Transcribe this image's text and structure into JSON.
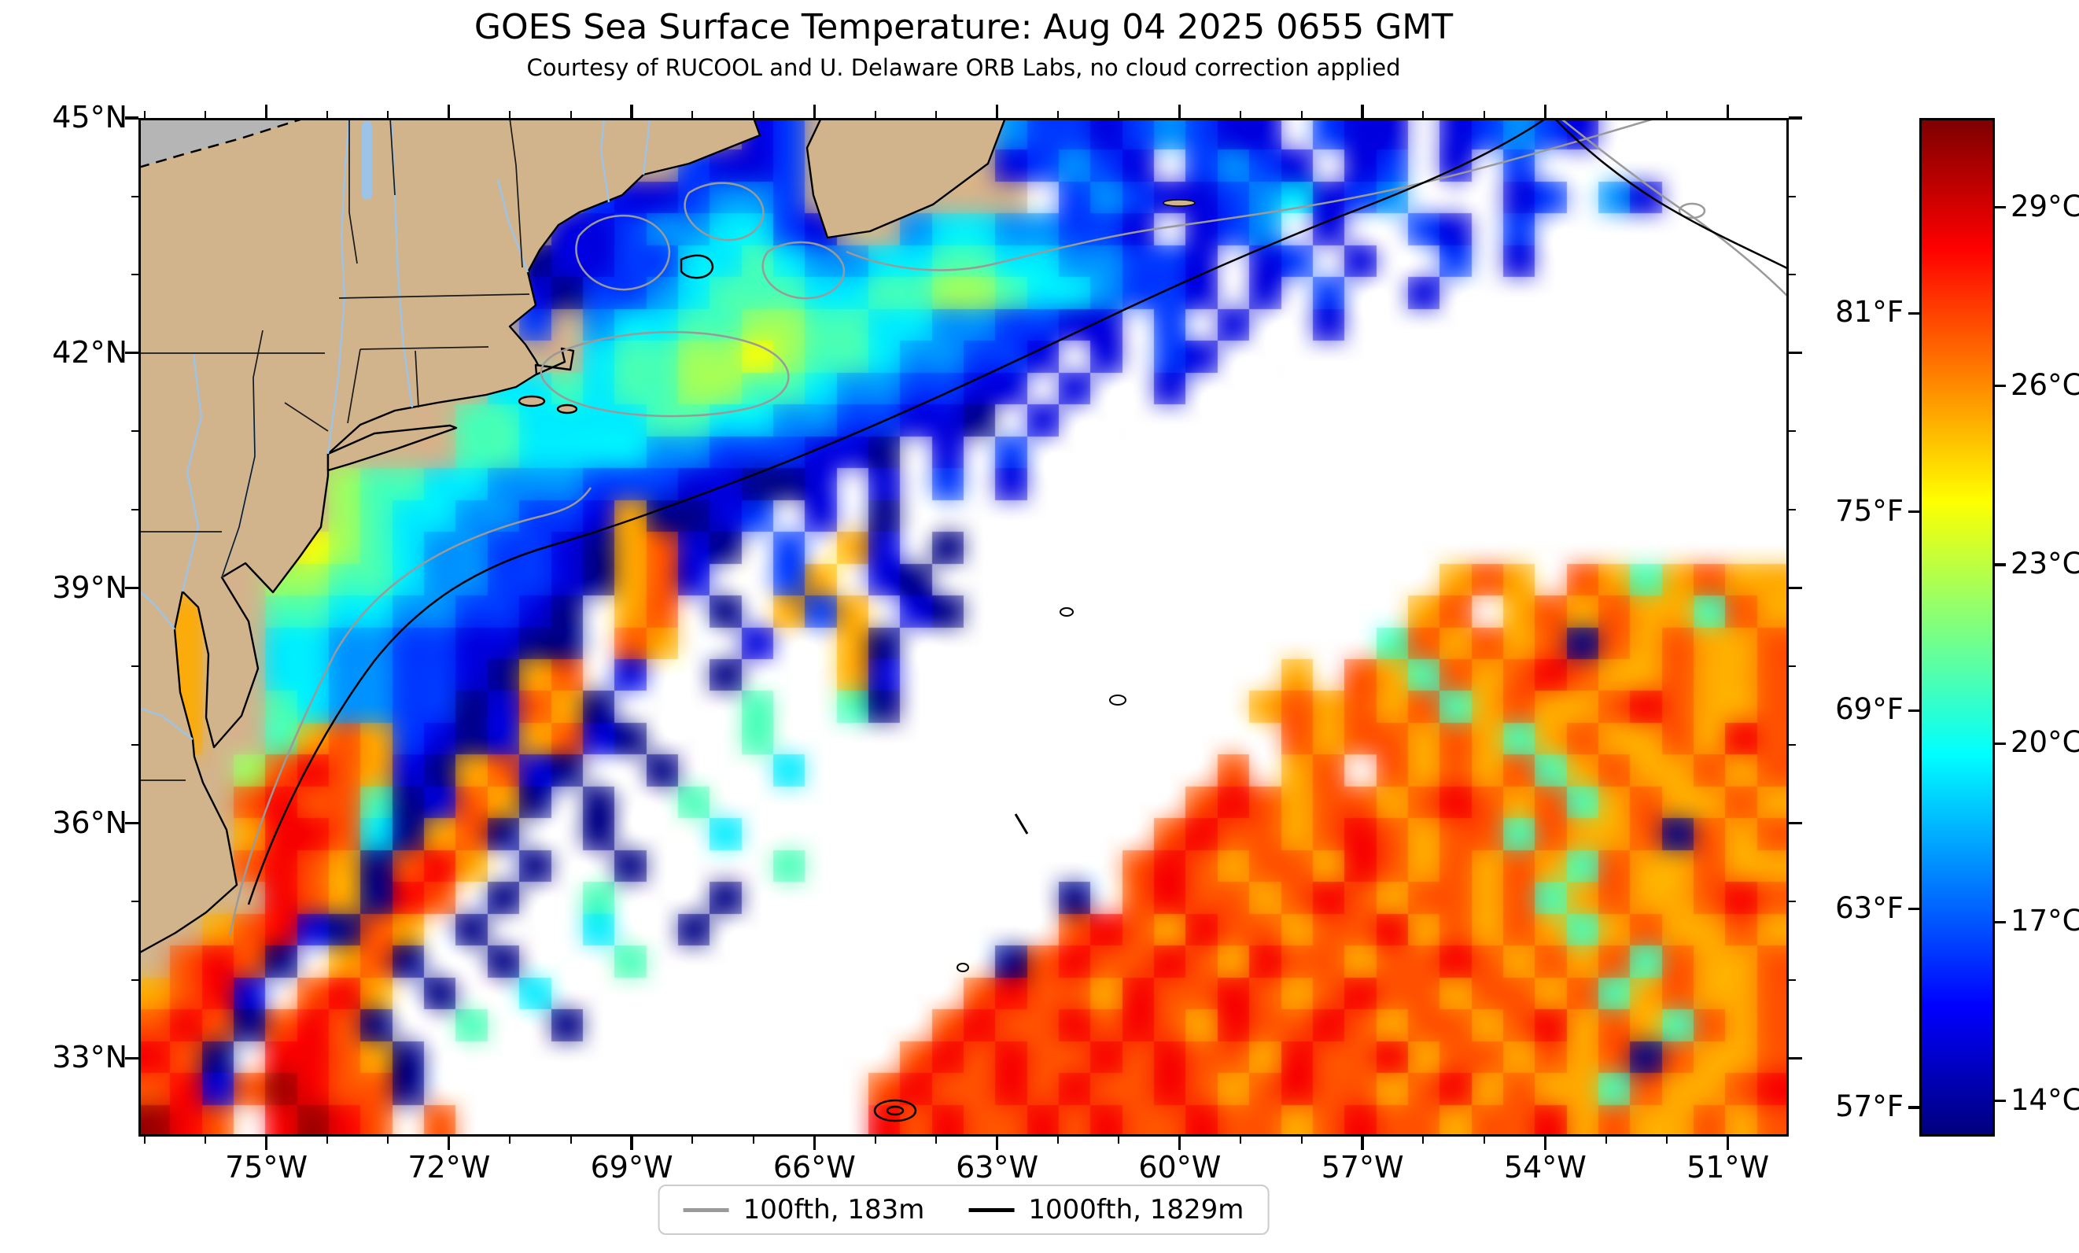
{
  "chart_data": {
    "type": "heatmap",
    "title": "GOES Sea Surface Temperature: Aug 04 2025 0655 GMT",
    "subtitle": "Courtesy of RUCOOL and U. Delaware ORB Labs, no cloud correction applied",
    "x_axis": {
      "min_deg_w": 77.1,
      "max_deg_w": 50.0,
      "minor_tick_step_deg": 1,
      "ticks": [
        {
          "deg_w": 75,
          "label": "75°W"
        },
        {
          "deg_w": 72,
          "label": "72°W"
        },
        {
          "deg_w": 69,
          "label": "69°W"
        },
        {
          "deg_w": 66,
          "label": "66°W"
        },
        {
          "deg_w": 63,
          "label": "63°W"
        },
        {
          "deg_w": 60,
          "label": "60°W"
        },
        {
          "deg_w": 57,
          "label": "57°W"
        },
        {
          "deg_w": 54,
          "label": "54°W"
        },
        {
          "deg_w": 51,
          "label": "51°W"
        }
      ]
    },
    "y_axis": {
      "max_deg_n": 45.0,
      "min_deg_n": 32.0,
      "minor_tick_step_deg": 1,
      "ticks": [
        {
          "deg_n": 45,
          "label": "45°N"
        },
        {
          "deg_n": 42,
          "label": "42°N"
        },
        {
          "deg_n": 39,
          "label": "39°N"
        },
        {
          "deg_n": 36,
          "label": "36°N"
        },
        {
          "deg_n": 33,
          "label": "33°N"
        }
      ]
    },
    "colorbar": {
      "colormap": "jet",
      "min_c": 13.4,
      "max_c": 30.5,
      "ticks_f": [
        {
          "f": 81,
          "label": "81°F"
        },
        {
          "f": 75,
          "label": "75°F"
        },
        {
          "f": 69,
          "label": "69°F"
        },
        {
          "f": 63,
          "label": "63°F"
        },
        {
          "f": 57,
          "label": "57°F"
        }
      ],
      "ticks_c": [
        {
          "c": 29,
          "label": "29°C"
        },
        {
          "c": 26,
          "label": "26°C"
        },
        {
          "c": 23,
          "label": "23°C"
        },
        {
          "c": 20,
          "label": "20°C"
        },
        {
          "c": 17,
          "label": "17°C"
        },
        {
          "c": 14,
          "label": "14°C"
        }
      ]
    },
    "legend": [
      {
        "label": "100fth, 183m",
        "color": "#9a9a9a"
      },
      {
        "label": "1000fth, 1829m",
        "color": "#000000"
      }
    ],
    "map_colors": {
      "land": "#d2b48c",
      "canada_land": "#b5b5b5",
      "cloud": "#ffffff",
      "coastline": "#000000",
      "boundary": "#1a1a1a",
      "river": "#9dc3e6",
      "frame": "#000000"
    },
    "sst_grid": {
      "cols": 52,
      "rows": 32,
      "lon_w_range": [
        77.1,
        50.0
      ],
      "lat_n_range": [
        45.0,
        32.0
      ],
      "cell_codes": {
        "L": "land",
        ".": "cloud/no-data"
      },
      "levels_c": {
        "0": 13.5,
        "1": 15.0,
        "2": 16.5,
        "3": 18.0,
        "4": 19.5,
        "5": 21.0,
        "6": 22.5,
        "7": 24.0,
        "8": 25.5,
        "9": 27.0,
        "A": 28.5,
        "B": 30.0
      },
      "rows_data": [
        "LLLLLLLLLLLLLLLLLLL12LLLLLL322123211.211.12321......",
        "LLLLLLLLLLLLLLLLL2112LLLLLL12321.2321.12.1.2........",
        "LLLLLLLLLLLLLL2112332LLLLLLL.23211234123...12.31....",
        "LLLLLLLLLLLLL112334421LL34433221.123.1..21.2........",
        "LLLLLLLLLLLL0112244543344554433221.12.1..2.1........",
        "LLLLLLLLLLLL1022345554455665443221.1.2..1...........",
        "LLLLLLLLLLLL2L34455665544332211.2.1..1..............",
        "LLLLLLLLLLLLLL455667655433221.1.21..................",
        "LLLLLLLLLLL44545566554332211.1..1...................",
        "LLLLLLLLLL55444455443322110.1.......................",
        "LLLLLLLLLL55444433222110.1.2........................",
        "LLLLLL6554433322211001.1.2.1........................",
        "LLLLLL65443322180012.1.0............................",
        "LLLLL76543322108910.2.81.0..........................",
        "LLLL66554332210891..28.10................898.9858988",
        "L8LL5544332210.89.0.828.10..............89.898988598",
        "L8LL4433221100.98..1..80...............5989890989889",
        "L8LL4433221089.1..0...81............8.985989A9889889",
        "L8LL54332201980....5..50...........898989589889A9889",
        "L8LL589821018910...5................98998985898898A9",
        "LLL69A98108910..0...4.............9.89.9898958988989",
        "LLL9A99501980.0..5...............9A989989A9895898898",
        "LLL8AA940890..0...4.............9A9989A9899598890989",
        "LLL9A9809A8.0..0....5..........9A98998A9898985988988",
        "LLLLA980A9.0..5...0..........0.9A9989A989989589889A9",
        "LL89A1098.0...4..0...........9A98A99899A898985898898",
        "L9A90.890..0...5...........09A99A98A99899A9898959889",
        "89A1.9A8.0..4.............9A998A99A989A9989989589889",
        "9A909A90..5..0...........9A99A9A98A99A989989A8985989",
        "A90.AA980...............9A9A99A9A998A99A899898909889",
        "9A19BA990..............9A99A9A99A989A9989A898859889A",
        "BA9.ABA9.9.............A9A99A9A99A9989A99899A8988989"
      ]
    }
  }
}
